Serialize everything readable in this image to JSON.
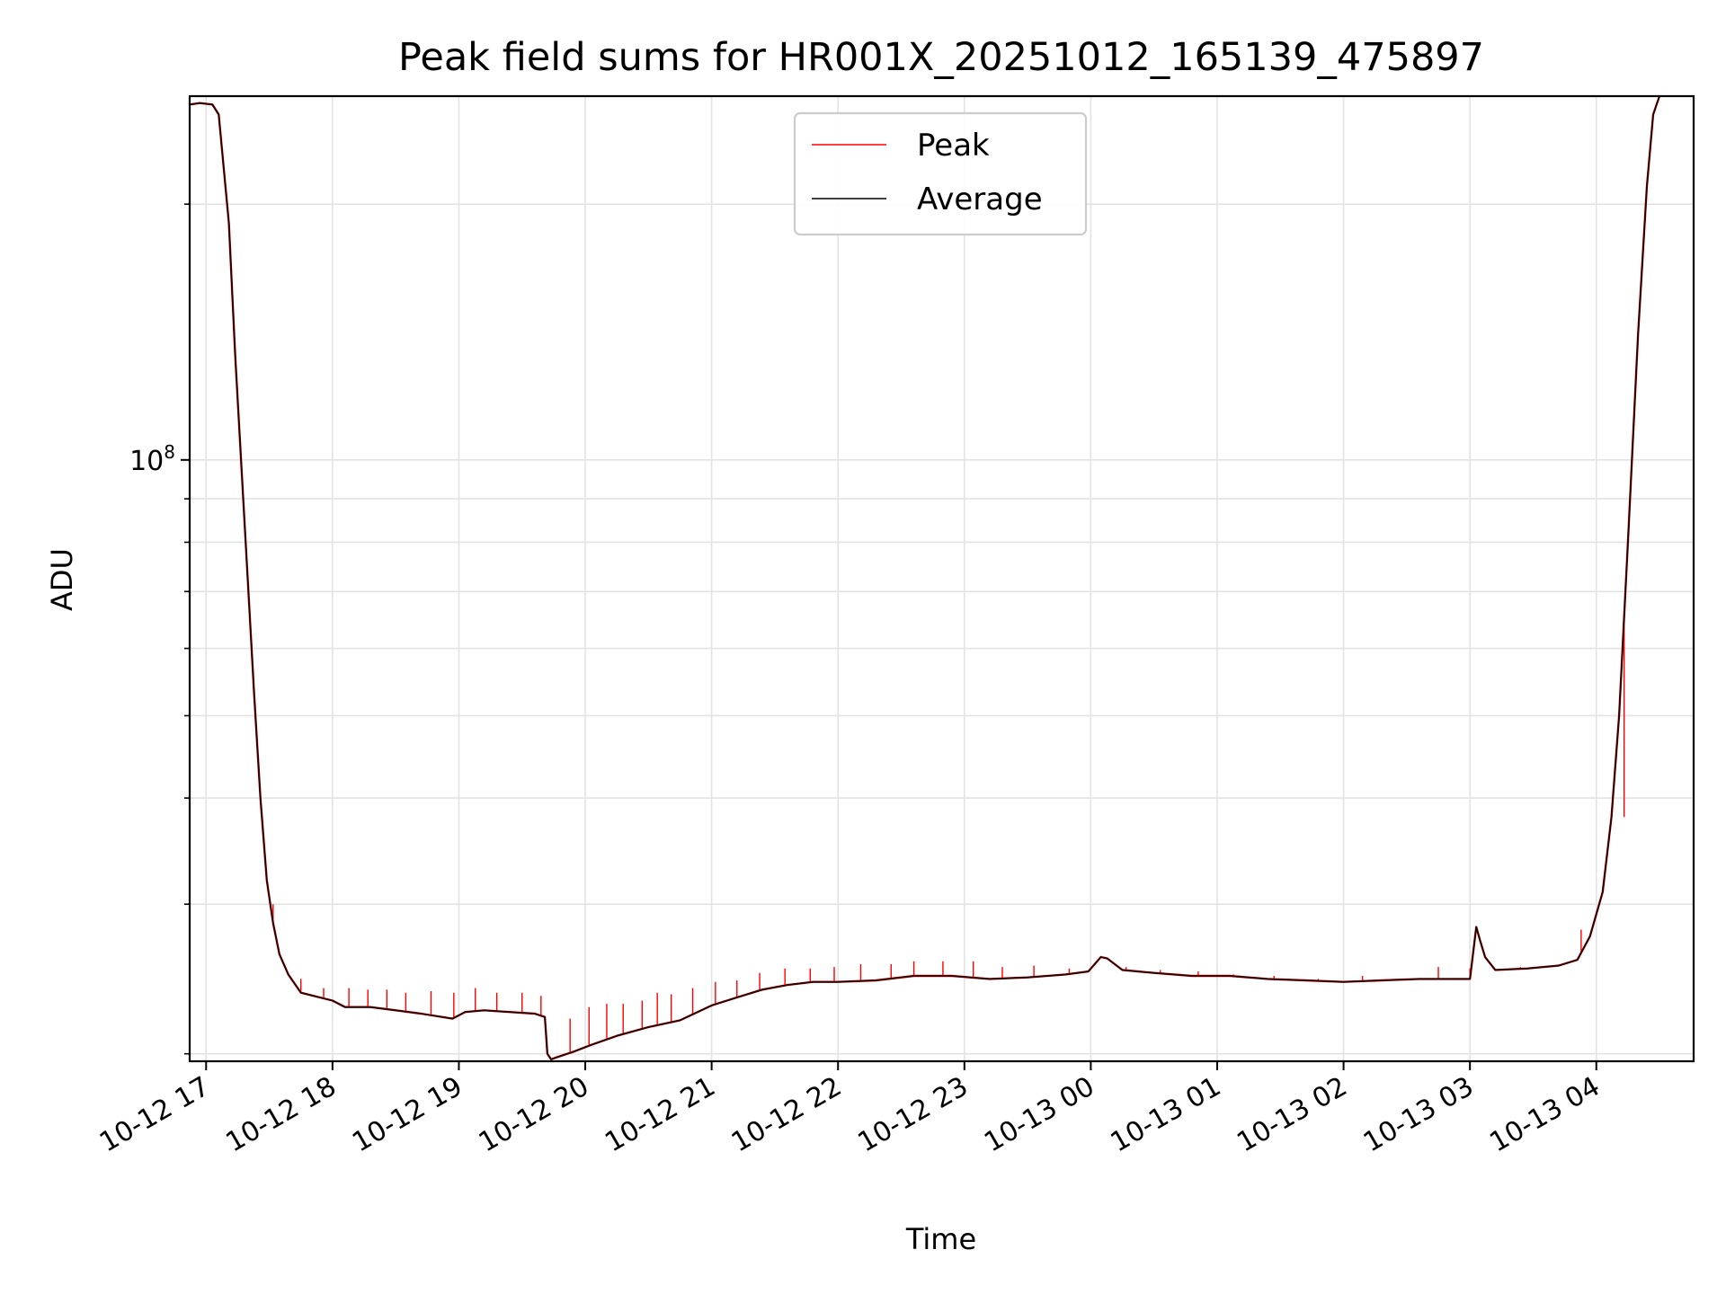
{
  "chart_data": {
    "type": "line",
    "title": "Peak field sums for HR001X_20251012_165139_475897",
    "xlabel": "Time",
    "ylabel": "ADU",
    "yscale": "log",
    "ylim": [
      19600000,
      268000000
    ],
    "xlim_hours": [
      16.87,
      28.77
    ],
    "grid": true,
    "legend_position": "upper center",
    "x_tick_labels": [
      "10-12 17",
      "10-12 18",
      "10-12 19",
      "10-12 20",
      "10-12 21",
      "10-12 22",
      "10-12 23",
      "10-13 00",
      "10-13 01",
      "10-13 02",
      "10-13 03",
      "10-13 04"
    ],
    "x_tick_hours": [
      17,
      18,
      19,
      20,
      21,
      22,
      23,
      24,
      25,
      26,
      27,
      28
    ],
    "y_major_tick": {
      "value": 100000000,
      "base": "10",
      "exponent": "8"
    },
    "y_minor_ticks": [
      20000000,
      30000000,
      40000000,
      50000000,
      60000000,
      70000000,
      80000000,
      90000000,
      200000000
    ],
    "series": [
      {
        "name": "Peak",
        "color": "#ff0000",
        "spikes": [
          [
            17.53,
            30000000
          ],
          [
            17.62,
            25500000
          ],
          [
            17.75,
            24500000
          ],
          [
            17.93,
            23900000
          ],
          [
            18.13,
            23900000
          ],
          [
            18.28,
            23800000
          ],
          [
            18.43,
            23800000
          ],
          [
            18.58,
            23600000
          ],
          [
            18.78,
            23700000
          ],
          [
            18.96,
            23600000
          ],
          [
            19.13,
            23900000
          ],
          [
            19.3,
            23600000
          ],
          [
            19.5,
            23600000
          ],
          [
            19.65,
            23400000
          ],
          [
            19.88,
            22000000
          ],
          [
            20.03,
            22700000
          ],
          [
            20.17,
            22900000
          ],
          [
            20.3,
            22900000
          ],
          [
            20.45,
            23100000
          ],
          [
            20.57,
            23600000
          ],
          [
            20.68,
            23500000
          ],
          [
            20.85,
            23900000
          ],
          [
            21.03,
            24300000
          ],
          [
            21.2,
            24400000
          ],
          [
            21.38,
            24900000
          ],
          [
            21.58,
            25200000
          ],
          [
            21.78,
            25200000
          ],
          [
            21.97,
            25300000
          ],
          [
            22.18,
            25500000
          ],
          [
            22.42,
            25500000
          ],
          [
            22.6,
            25700000
          ],
          [
            22.83,
            25700000
          ],
          [
            23.07,
            25700000
          ],
          [
            23.3,
            25300000
          ],
          [
            23.55,
            25400000
          ],
          [
            23.83,
            25200000
          ],
          [
            24.05,
            25600000
          ],
          [
            24.28,
            25300000
          ],
          [
            24.55,
            25100000
          ],
          [
            24.85,
            25000000
          ],
          [
            25.13,
            24800000
          ],
          [
            25.45,
            24700000
          ],
          [
            25.8,
            24500000
          ],
          [
            26.15,
            24700000
          ],
          [
            26.45,
            24500000
          ],
          [
            26.75,
            25300000
          ],
          [
            27.0,
            25200000
          ],
          [
            27.4,
            25300000
          ],
          [
            27.65,
            25400000
          ],
          [
            27.88,
            28000000
          ],
          [
            28.22,
            38000000
          ]
        ]
      },
      {
        "name": "Average",
        "color": "#000000",
        "points": [
          [
            16.87,
            262000000
          ],
          [
            16.95,
            263000000
          ],
          [
            17.05,
            262000000
          ],
          [
            17.1,
            255000000
          ],
          [
            17.18,
            190000000
          ],
          [
            17.23,
            133000000
          ],
          [
            17.28,
            98000000
          ],
          [
            17.33,
            72000000
          ],
          [
            17.38,
            53000000
          ],
          [
            17.43,
            40000000
          ],
          [
            17.48,
            32000000
          ],
          [
            17.53,
            28500000
          ],
          [
            17.58,
            26200000
          ],
          [
            17.65,
            24800000
          ],
          [
            17.75,
            23600000
          ],
          [
            17.9,
            23300000
          ],
          [
            18.0,
            23100000
          ],
          [
            18.1,
            22700000
          ],
          [
            18.3,
            22700000
          ],
          [
            18.5,
            22500000
          ],
          [
            18.7,
            22300000
          ],
          [
            18.95,
            22000000
          ],
          [
            19.05,
            22400000
          ],
          [
            19.2,
            22500000
          ],
          [
            19.4,
            22400000
          ],
          [
            19.6,
            22300000
          ],
          [
            19.68,
            22100000
          ],
          [
            19.7,
            20000000
          ],
          [
            19.73,
            19700000
          ],
          [
            19.77,
            19800000
          ],
          [
            19.9,
            20100000
          ],
          [
            20.05,
            20500000
          ],
          [
            20.25,
            21000000
          ],
          [
            20.5,
            21500000
          ],
          [
            20.75,
            21900000
          ],
          [
            21.0,
            22800000
          ],
          [
            21.2,
            23300000
          ],
          [
            21.4,
            23800000
          ],
          [
            21.6,
            24100000
          ],
          [
            21.8,
            24300000
          ],
          [
            22.0,
            24300000
          ],
          [
            22.3,
            24400000
          ],
          [
            22.6,
            24700000
          ],
          [
            22.9,
            24700000
          ],
          [
            23.2,
            24500000
          ],
          [
            23.5,
            24600000
          ],
          [
            23.8,
            24800000
          ],
          [
            23.98,
            25000000
          ],
          [
            24.08,
            26000000
          ],
          [
            24.13,
            25900000
          ],
          [
            24.25,
            25100000
          ],
          [
            24.5,
            24900000
          ],
          [
            24.8,
            24700000
          ],
          [
            25.1,
            24700000
          ],
          [
            25.4,
            24500000
          ],
          [
            25.7,
            24400000
          ],
          [
            26.0,
            24300000
          ],
          [
            26.3,
            24400000
          ],
          [
            26.6,
            24500000
          ],
          [
            26.85,
            24500000
          ],
          [
            27.0,
            24500000
          ],
          [
            27.05,
            28200000
          ],
          [
            27.08,
            27200000
          ],
          [
            27.12,
            26000000
          ],
          [
            27.2,
            25100000
          ],
          [
            27.45,
            25200000
          ],
          [
            27.7,
            25400000
          ],
          [
            27.85,
            25800000
          ],
          [
            27.95,
            27500000
          ],
          [
            28.05,
            31000000
          ],
          [
            28.12,
            38000000
          ],
          [
            28.18,
            50000000
          ],
          [
            28.25,
            80000000
          ],
          [
            28.33,
            140000000
          ],
          [
            28.4,
            210000000
          ],
          [
            28.45,
            255000000
          ],
          [
            28.5,
            268000000
          ]
        ]
      }
    ]
  }
}
